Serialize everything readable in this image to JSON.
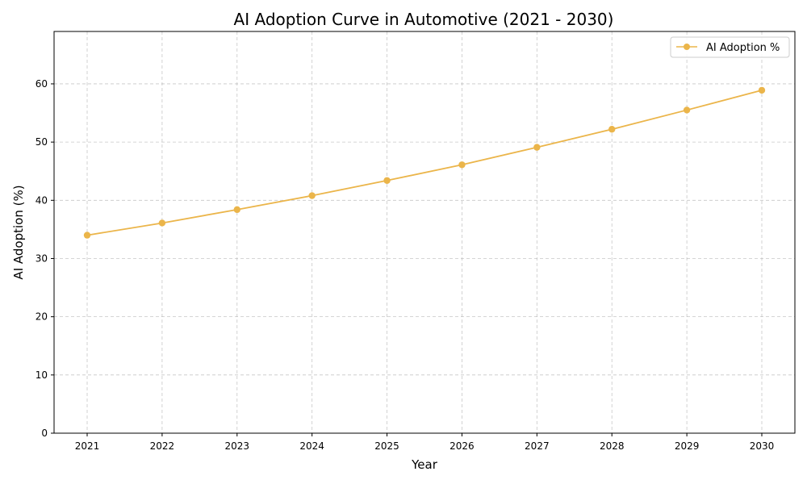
{
  "chart_data": {
    "type": "line",
    "title": "AI Adoption Curve in Automotive (2021 - 2030)",
    "xlabel": "Year",
    "ylabel": "AI Adoption (%)",
    "x": [
      "2021",
      "2022",
      "2023",
      "2024",
      "2025",
      "2026",
      "2027",
      "2028",
      "2029",
      "2030"
    ],
    "y_ticks": [
      0,
      10,
      20,
      30,
      40,
      50,
      60
    ],
    "ylim": [
      0,
      69
    ],
    "grid": true,
    "legend_position": "top-right",
    "series": [
      {
        "name": "AI Adoption %",
        "color": "#EBB54A",
        "values": [
          34.0,
          36.1,
          38.4,
          40.8,
          43.4,
          46.1,
          49.1,
          52.2,
          55.5,
          58.9
        ]
      }
    ]
  }
}
